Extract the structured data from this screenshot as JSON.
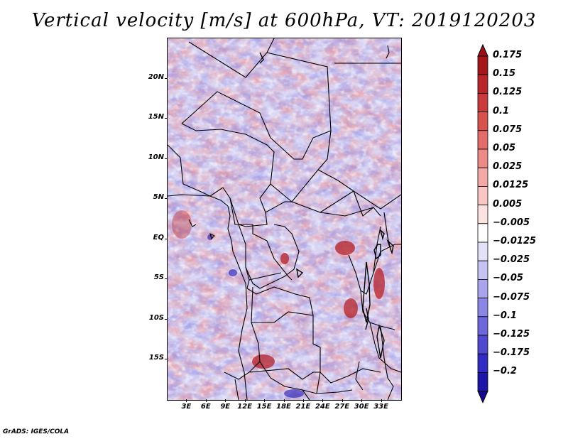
{
  "title": "Vertical velocity [m/s] at 600hPa, VT: 2019120203",
  "footer": "GrADS: IGES/COLA",
  "map": {
    "lat_range": [
      -20,
      25
    ],
    "lon_range": [
      0,
      36
    ],
    "lat_ticks": [
      {
        "value": 20,
        "label": "20N"
      },
      {
        "value": 15,
        "label": "15N"
      },
      {
        "value": 10,
        "label": "10N"
      },
      {
        "value": 5,
        "label": "5N"
      },
      {
        "value": 0,
        "label": "EQ"
      },
      {
        "value": -5,
        "label": "5S"
      },
      {
        "value": -10,
        "label": "10S"
      },
      {
        "value": -15,
        "label": "15S"
      }
    ],
    "lon_ticks": [
      {
        "value": 3,
        "label": "3E"
      },
      {
        "value": 6,
        "label": "6E"
      },
      {
        "value": 9,
        "label": "9E"
      },
      {
        "value": 12,
        "label": "12E"
      },
      {
        "value": 15,
        "label": "15E"
      },
      {
        "value": 18,
        "label": "18E"
      },
      {
        "value": 21,
        "label": "21E"
      },
      {
        "value": 24,
        "label": "24E"
      },
      {
        "value": 27,
        "label": "27E"
      },
      {
        "value": 30,
        "label": "30E"
      },
      {
        "value": 33,
        "label": "33E"
      }
    ]
  },
  "colorbar": {
    "levels": [
      {
        "label": "0.175",
        "color": "#a5161b"
      },
      {
        "label": "0.15",
        "color": "#b8252b"
      },
      {
        "label": "0.125",
        "color": "#c93a3c"
      },
      {
        "label": "0.1",
        "color": "#d8524f"
      },
      {
        "label": "0.075",
        "color": "#e36d6a"
      },
      {
        "label": "0.05",
        "color": "#ec8a87"
      },
      {
        "label": "0.025",
        "color": "#f3a9a6"
      },
      {
        "label": "0.0125",
        "color": "#f8c6c4"
      },
      {
        "label": "0.005",
        "color": "#fce2e1"
      },
      {
        "label": "−0.005",
        "color": "#ffffff"
      },
      {
        "label": "−0.0125",
        "color": "#e3e1f8"
      },
      {
        "label": "−0.025",
        "color": "#c6c3f2"
      },
      {
        "label": "−0.05",
        "color": "#a9a4ec"
      },
      {
        "label": "−0.075",
        "color": "#8b85e3"
      },
      {
        "label": "−0.1",
        "color": "#6e67da"
      },
      {
        "label": "−0.125",
        "color": "#5049cf"
      },
      {
        "label": "−0.175",
        "color": "#332cc2"
      },
      {
        "label": "−0.2",
        "color": "#1d14a8"
      }
    ],
    "top_cap_color": "#9a1018",
    "bottom_cap_color": "#12098f"
  }
}
